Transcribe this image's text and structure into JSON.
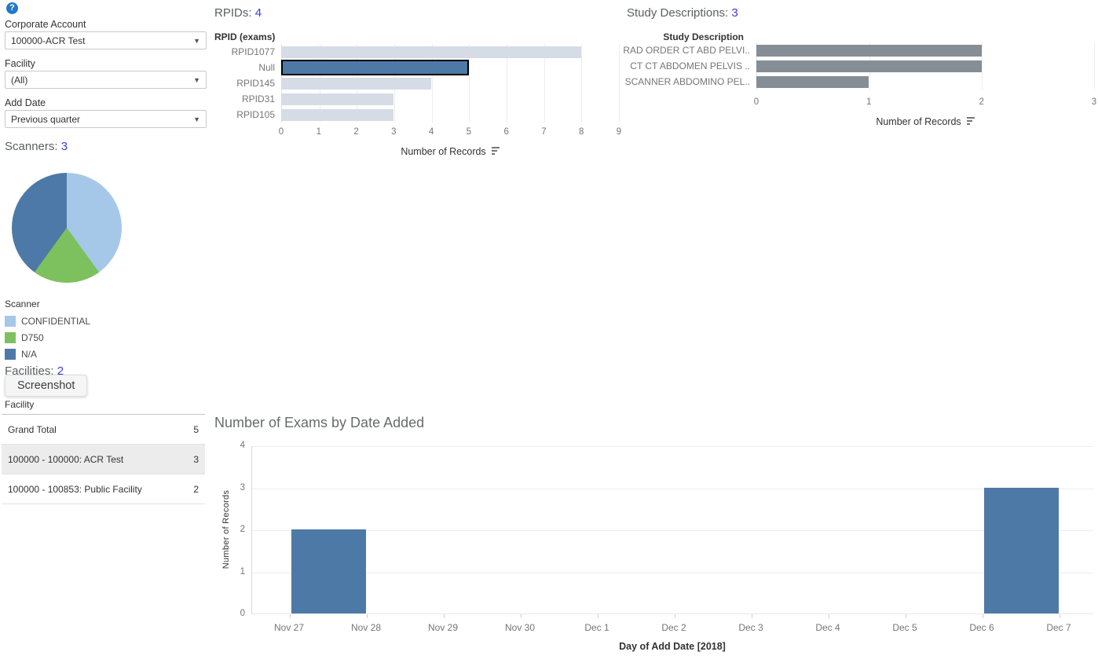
{
  "sidebar": {
    "help_icon": "?",
    "filters": {
      "corporate_account": {
        "label": "Corporate Account",
        "value": "100000-ACR Test"
      },
      "facility": {
        "label": "Facility",
        "value": "(All)"
      },
      "add_date": {
        "label": "Add Date",
        "value": "Previous quarter"
      }
    },
    "scanners_title": "Scanners:",
    "scanners_count": "3",
    "facilities_title": "Facilities:",
    "facilities_count": "2",
    "screenshot_button": "Screenshot",
    "facility_table": {
      "header": "Facility",
      "rows": [
        {
          "label": "Grand Total",
          "value": "5",
          "highlight": false
        },
        {
          "label": "100000 - 100000: ACR Test",
          "value": "3",
          "highlight": true
        },
        {
          "label": "100000 - 100853: Public Facility",
          "value": "2",
          "highlight": false
        }
      ]
    }
  },
  "panels": {
    "rpids": {
      "title": "RPIDs:",
      "count": "4"
    },
    "study": {
      "title": "Study Descriptions:",
      "count": "3"
    },
    "dates": {
      "title": "Number of Exams by Date Added"
    }
  },
  "colors": {
    "link_blue": "#3a3fd1",
    "help_blue": "#2478c8",
    "bar_light": "#d6dce5",
    "bar_selected_blue": "#4d79a7",
    "bar_gray": "#868e95",
    "bar_date_blue": "#4d79a7"
  },
  "chart_data": [
    {
      "id": "scanners_pie",
      "type": "pie",
      "title": "Scanners: 3",
      "legend_title": "Scanner",
      "slices": [
        {
          "label": "CONFIDENTIAL",
          "value": 2,
          "color": "#a5c8e8"
        },
        {
          "label": "D750",
          "value": 1,
          "color": "#7dc05e"
        },
        {
          "label": "N/A",
          "value": 2,
          "color": "#4d79a8"
        }
      ],
      "legend_position": "bottom"
    },
    {
      "id": "rpids_bar",
      "type": "bar",
      "orientation": "horizontal",
      "title": "RPIDs: 4",
      "column_header": "RPID (exams)",
      "categories": [
        "RPID1077",
        "Null",
        "RPID145",
        "RPID31",
        "RPID105"
      ],
      "values": [
        8,
        5,
        4,
        3,
        3
      ],
      "selected_category": "Null",
      "xlabel": "Number of Records",
      "xlim": [
        0,
        9
      ],
      "xticks": [
        0,
        1,
        2,
        3,
        4,
        5,
        6,
        7,
        8,
        9
      ],
      "bar_color_default": "#d6dce5",
      "bar_color_selected": "#4d79a7"
    },
    {
      "id": "study_bar",
      "type": "bar",
      "orientation": "horizontal",
      "title": "Study Descriptions: 3",
      "column_header": "Study Description",
      "categories": [
        "RAD ORDER CT ABD PELVI..",
        "CT CT ABDOMEN PELVIS ..",
        "SCANNER ABDOMINO PEL.."
      ],
      "values": [
        2,
        2,
        1
      ],
      "xlabel": "Number of Records",
      "xlim": [
        0,
        3
      ],
      "xticks": [
        0,
        1,
        2,
        3
      ],
      "bar_color": "#868e95"
    },
    {
      "id": "exams_by_date",
      "type": "bar",
      "orientation": "vertical",
      "title": "Number of Exams by Date Added",
      "ylabel": "Number of Records",
      "xlabel": "Day of Add Date [2018]",
      "x_ticks": [
        "Nov 27",
        "Nov 28",
        "Nov 29",
        "Nov 30",
        "Dec 1",
        "Dec 2",
        "Dec 3",
        "Dec 4",
        "Dec 5",
        "Dec 6",
        "Dec 7"
      ],
      "bars": [
        {
          "date": "Nov 27",
          "value": 2
        },
        {
          "date": "Dec 6",
          "value": 3
        }
      ],
      "ylim": [
        0,
        4
      ],
      "yticks": [
        0,
        1,
        2,
        3,
        4
      ],
      "bar_color": "#4d79a7"
    }
  ]
}
